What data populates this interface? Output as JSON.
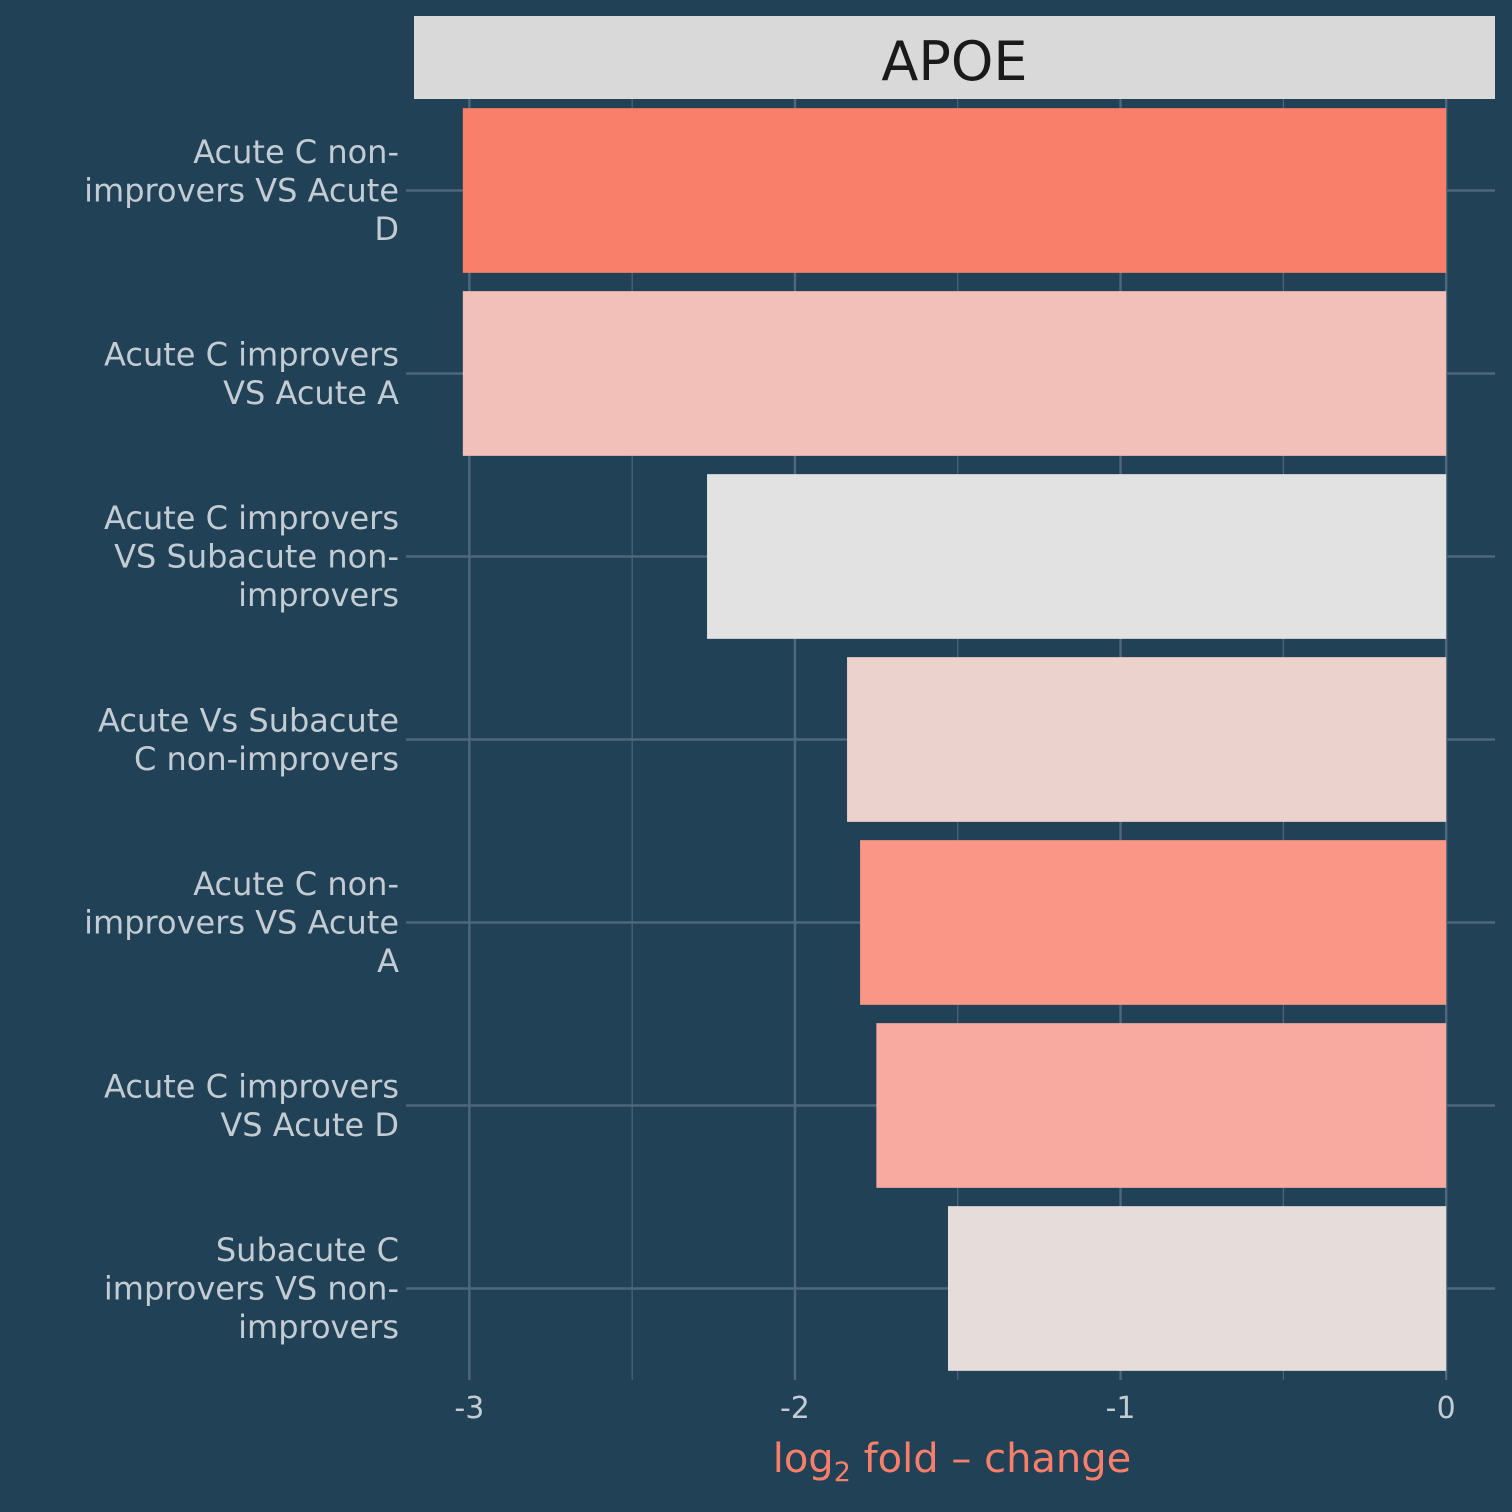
{
  "chart_data": {
    "type": "bar",
    "orientation": "horizontal",
    "facet_title": "APOE",
    "xlabel": {
      "main": "log",
      "subscript": "2",
      "suffix": " fold – change"
    },
    "ylabel": "",
    "xlim": [
      -3.17,
      0.15
    ],
    "xticks": [
      -3,
      -2,
      -1,
      0
    ],
    "xtick_labels": [
      "-3",
      "-2",
      "-1",
      "0"
    ],
    "grid": true,
    "legend": "none",
    "bars": [
      {
        "label": [
          "Acute C non-",
          "improvers VS Acute",
          "D"
        ],
        "value": -3.02,
        "color": "#f97f6a"
      },
      {
        "label": [
          "Acute C improvers",
          "VS Acute A"
        ],
        "value": -3.02,
        "color": "#f2bfb9"
      },
      {
        "label": [
          "Acute C improvers",
          "VS Subacute non-",
          "improvers"
        ],
        "value": -2.27,
        "color": "#e2e2e2"
      },
      {
        "label": [
          "Acute Vs Subacute",
          "C non-improvers"
        ],
        "value": -1.84,
        "color": "#ebd2cd"
      },
      {
        "label": [
          "Acute C non-",
          "improvers VS Acute",
          "A"
        ],
        "value": -1.8,
        "color": "#f99686"
      },
      {
        "label": [
          "Acute C improvers",
          "VS Acute D"
        ],
        "value": -1.75,
        "color": "#f8aaa0"
      },
      {
        "label": [
          "Subacute C",
          "improvers VS non-",
          "improvers"
        ],
        "value": -1.53,
        "color": "#e6dcd9"
      }
    ],
    "colors": {
      "background": "#214157",
      "grid": "#4e677a",
      "strip": "#d9d9d9",
      "text": "#c4ccd3",
      "axis_title": "#f97f6a",
      "facet_title": "#1a1a1a"
    }
  }
}
